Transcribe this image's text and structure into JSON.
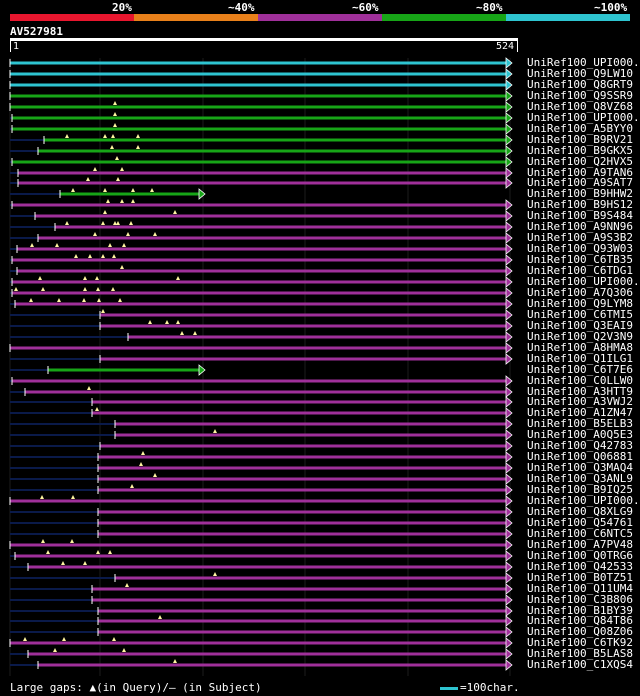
{
  "legend": {
    "segments": [
      {
        "color": "#e8162e"
      },
      {
        "color": "#e8801a"
      },
      {
        "color": "#a0309a"
      },
      {
        "color": "#17a517"
      },
      {
        "color": "#2ec4d0"
      }
    ],
    "labels": [
      "20%",
      "~40%",
      "~60%",
      "~80%",
      "~100%"
    ]
  },
  "query": {
    "id": "AV527981",
    "start": "1",
    "end": "524"
  },
  "hits": [
    {
      "name": "UniRef100_UPI000..",
      "color": "#2ec4d0"
    },
    {
      "name": "UniRef100_Q9LW10",
      "color": "#2ec4d0"
    },
    {
      "name": "UniRef100_Q8GRT9",
      "color": "#2ec4d0"
    },
    {
      "name": "UniRef100_Q9SSR9",
      "color": "#17a517"
    },
    {
      "name": "UniRef100_Q8VZ68",
      "color": "#17a517"
    },
    {
      "name": "UniRef100_UPI000..",
      "color": "#17a517"
    },
    {
      "name": "UniRef100_A5BYY0",
      "color": "#17a517"
    },
    {
      "name": "UniRef100_B9RV21",
      "color": "#17a517"
    },
    {
      "name": "UniRef100_B9GKX5",
      "color": "#17a517"
    },
    {
      "name": "UniRef100_Q2HVX5",
      "color": "#17a517"
    },
    {
      "name": "UniRef100_A9TAN6",
      "color": "#a0309a"
    },
    {
      "name": "UniRef100_A9SAT7",
      "color": "#a0309a"
    },
    {
      "name": "UniRef100_B9HHW2",
      "color": "#17a517"
    },
    {
      "name": "UniRef100_B9HS12",
      "color": "#a0309a"
    },
    {
      "name": "UniRef100_B9S484",
      "color": "#a0309a"
    },
    {
      "name": "UniRef100_A9NN96",
      "color": "#a0309a"
    },
    {
      "name": "UniRef100_A9S3B2",
      "color": "#a0309a"
    },
    {
      "name": "UniRef100_Q93W03",
      "color": "#a0309a"
    },
    {
      "name": "UniRef100_C6TB35",
      "color": "#a0309a"
    },
    {
      "name": "UniRef100_C6TDG1",
      "color": "#a0309a"
    },
    {
      "name": "UniRef100_UPI000..",
      "color": "#a0309a"
    },
    {
      "name": "UniRef100_A7Q306",
      "color": "#a0309a"
    },
    {
      "name": "UniRef100_Q9LYM8",
      "color": "#a0309a"
    },
    {
      "name": "UniRef100_C6TMI5",
      "color": "#a0309a"
    },
    {
      "name": "UniRef100_Q3EAI9",
      "color": "#a0309a"
    },
    {
      "name": "UniRef100_Q2V3N9",
      "color": "#a0309a"
    },
    {
      "name": "UniRef100_A8HMA8",
      "color": "#a0309a"
    },
    {
      "name": "UniRef100_Q1ILG1",
      "color": "#a0309a"
    },
    {
      "name": "UniRef100_C6T7E6",
      "color": "#17a517"
    },
    {
      "name": "UniRef100_C0LLW0",
      "color": "#a0309a"
    },
    {
      "name": "UniRef100_A3HTT9",
      "color": "#a0309a"
    },
    {
      "name": "UniRef100_A3VWJ2",
      "color": "#a0309a"
    },
    {
      "name": "UniRef100_A1ZN47",
      "color": "#a0309a"
    },
    {
      "name": "UniRef100_B5ELB3",
      "color": "#a0309a"
    },
    {
      "name": "UniRef100_A0Q5E3",
      "color": "#a0309a"
    },
    {
      "name": "UniRef100_Q42783",
      "color": "#a0309a"
    },
    {
      "name": "UniRef100_Q06881",
      "color": "#a0309a"
    },
    {
      "name": "UniRef100_Q3MAQ4",
      "color": "#a0309a"
    },
    {
      "name": "UniRef100_Q3ANL9",
      "color": "#a0309a"
    },
    {
      "name": "UniRef100_B9IQ25",
      "color": "#a0309a"
    },
    {
      "name": "UniRef100_UPI000..",
      "color": "#a0309a"
    },
    {
      "name": "UniRef100_Q8XLG9",
      "color": "#a0309a"
    },
    {
      "name": "UniRef100_Q54761",
      "color": "#a0309a"
    },
    {
      "name": "UniRef100_C6NTC5",
      "color": "#a0309a"
    },
    {
      "name": "UniRef100_A7PV48",
      "color": "#a0309a"
    },
    {
      "name": "UniRef100_Q0TRG6",
      "color": "#a0309a"
    },
    {
      "name": "UniRef100_Q42533",
      "color": "#a0309a"
    },
    {
      "name": "UniRef100_B0TZ51",
      "color": "#a0309a"
    },
    {
      "name": "UniRef100_Q11UM4",
      "color": "#a0309a"
    },
    {
      "name": "UniRef100_C3B806",
      "color": "#a0309a"
    },
    {
      "name": "UniRef100_B1BY39",
      "color": "#a0309a"
    },
    {
      "name": "UniRef100_Q84T86",
      "color": "#a0309a"
    },
    {
      "name": "UniRef100_Q08Z06",
      "color": "#a0309a"
    },
    {
      "name": "UniRef100_C6TK92",
      "color": "#a0309a"
    },
    {
      "name": "UniRef100_B5LAS8",
      "color": "#a0309a"
    },
    {
      "name": "UniRef100_C1XQS4",
      "color": "#a0309a"
    }
  ],
  "footer": {
    "gaps_text": "Large gaps: ▲(in Query)/– (in Subject)",
    "scale_text": "=100char."
  }
}
